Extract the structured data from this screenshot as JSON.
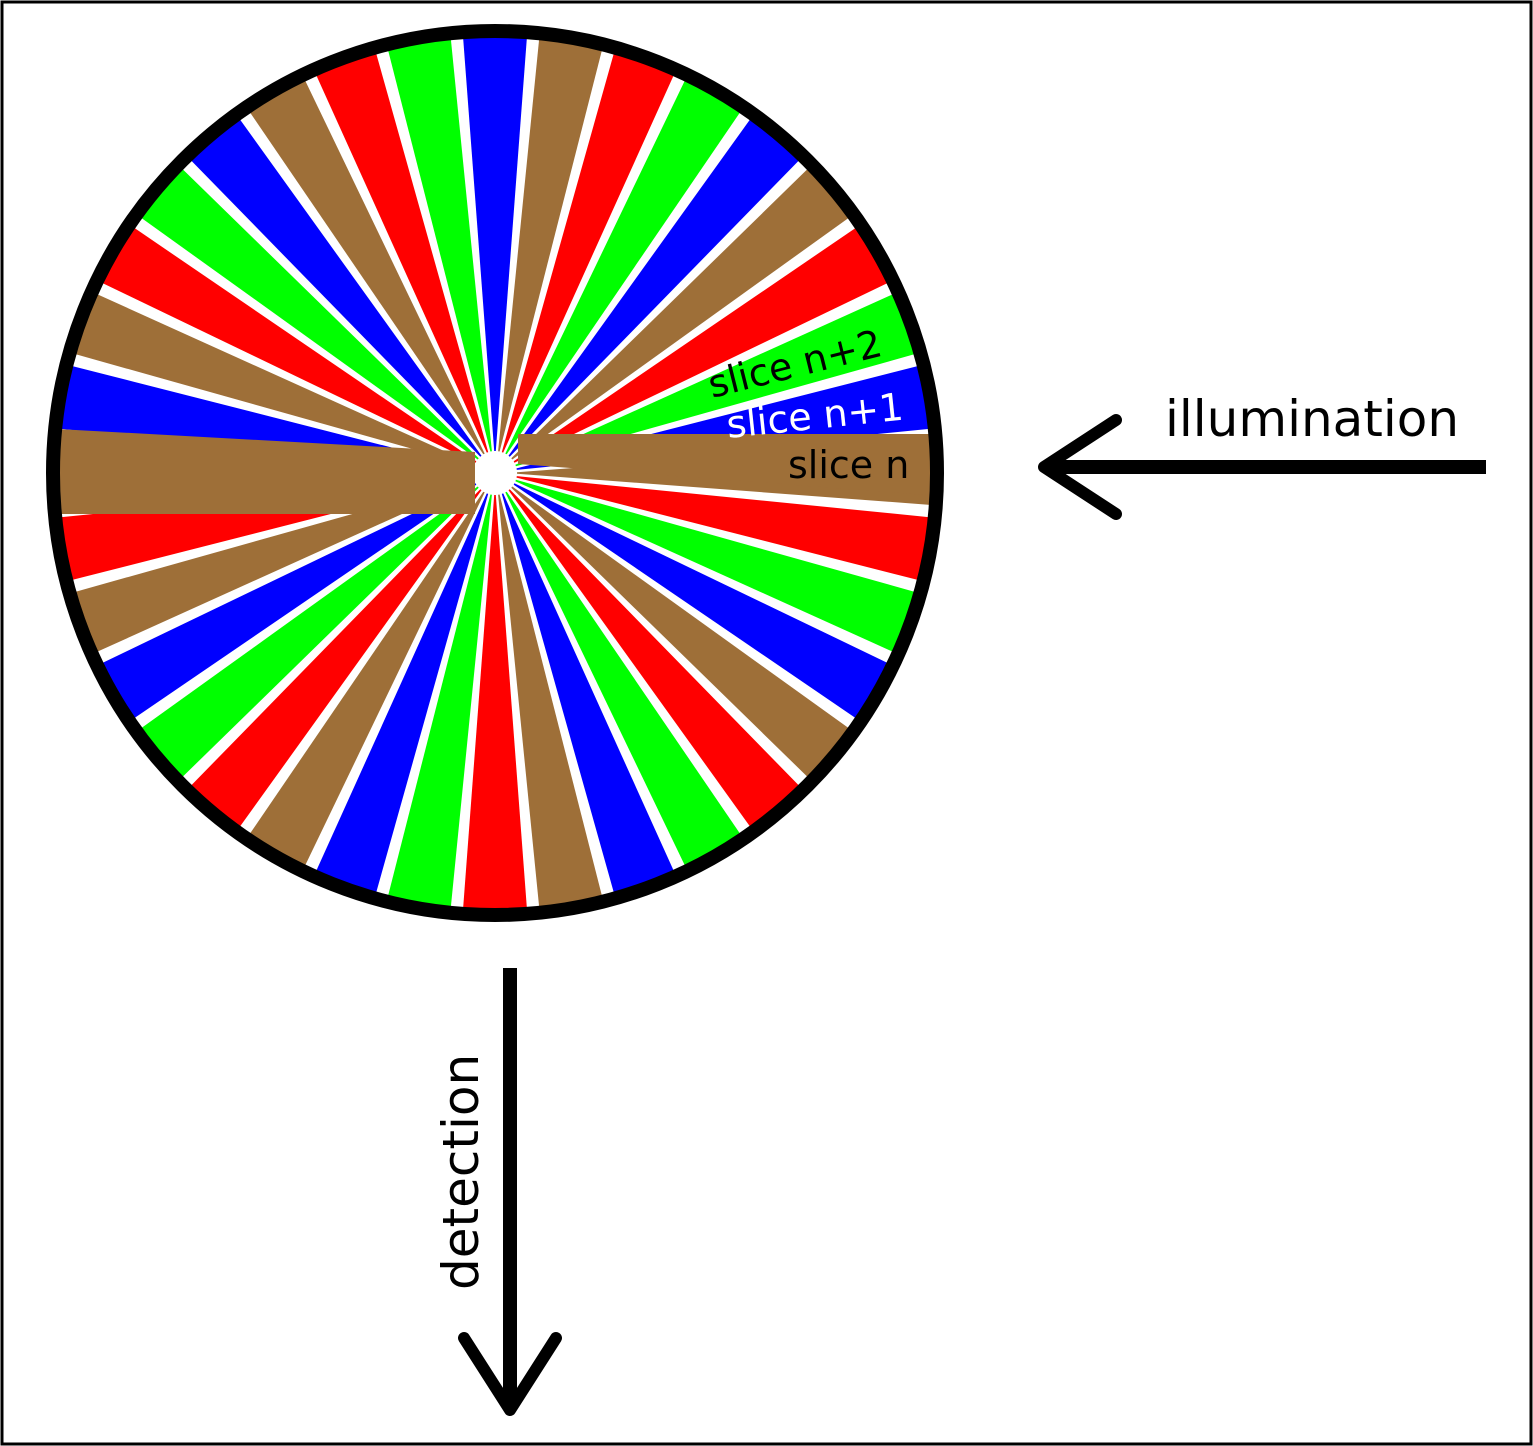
{
  "diagram": {
    "colors": {
      "brown": "#9E6F38",
      "blue": "#0000FF",
      "red": "#FF0000",
      "green": "#00FF00",
      "outline": "#000000",
      "background": "#FFFFFF"
    },
    "slice_color_cycle": [
      "brown",
      "blue",
      "green",
      "red"
    ],
    "slice_count": 36,
    "labels": {
      "slice_n": "slice n",
      "slice_n1": "slice n+1",
      "slice_n2": "slice n+2",
      "illumination": "illumination",
      "detection": "detection"
    },
    "label_colors": {
      "slice_n": "#000000",
      "slice_n1": "#FFFFFF",
      "slice_n2": "#000000"
    },
    "arrows": {
      "illumination": "arrow-left-icon",
      "detection": "arrow-down-icon"
    }
  }
}
